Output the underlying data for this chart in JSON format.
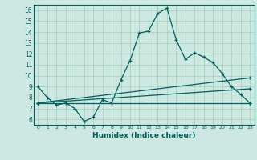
{
  "title": "",
  "xlabel": "Humidex (Indice chaleur)",
  "bg_color": "#cce8e0",
  "line_color": "#006060",
  "xlim": [
    -0.5,
    23.5
  ],
  "ylim": [
    5.5,
    16.5
  ],
  "xticks": [
    0,
    1,
    2,
    3,
    4,
    5,
    6,
    7,
    8,
    9,
    10,
    11,
    12,
    13,
    14,
    15,
    16,
    17,
    18,
    19,
    20,
    21,
    22,
    23
  ],
  "yticks": [
    6,
    7,
    8,
    9,
    10,
    11,
    12,
    13,
    14,
    15,
    16
  ],
  "lines": [
    {
      "x": [
        0,
        1,
        2,
        3,
        4,
        5,
        6,
        7,
        8,
        9,
        10,
        11,
        12,
        13,
        14,
        15,
        16,
        17,
        18,
        19,
        20,
        21,
        22,
        23
      ],
      "y": [
        9.0,
        8.0,
        7.3,
        7.5,
        7.0,
        5.8,
        6.2,
        7.8,
        7.5,
        9.6,
        11.4,
        13.9,
        14.1,
        15.7,
        16.2,
        13.3,
        11.5,
        12.1,
        11.7,
        11.2,
        10.2,
        9.0,
        8.3,
        7.5
      ]
    },
    {
      "x": [
        0,
        23
      ],
      "y": [
        7.5,
        7.5
      ]
    },
    {
      "x": [
        0,
        23
      ],
      "y": [
        7.5,
        8.8
      ]
    },
    {
      "x": [
        0,
        23
      ],
      "y": [
        7.5,
        9.8
      ]
    }
  ]
}
